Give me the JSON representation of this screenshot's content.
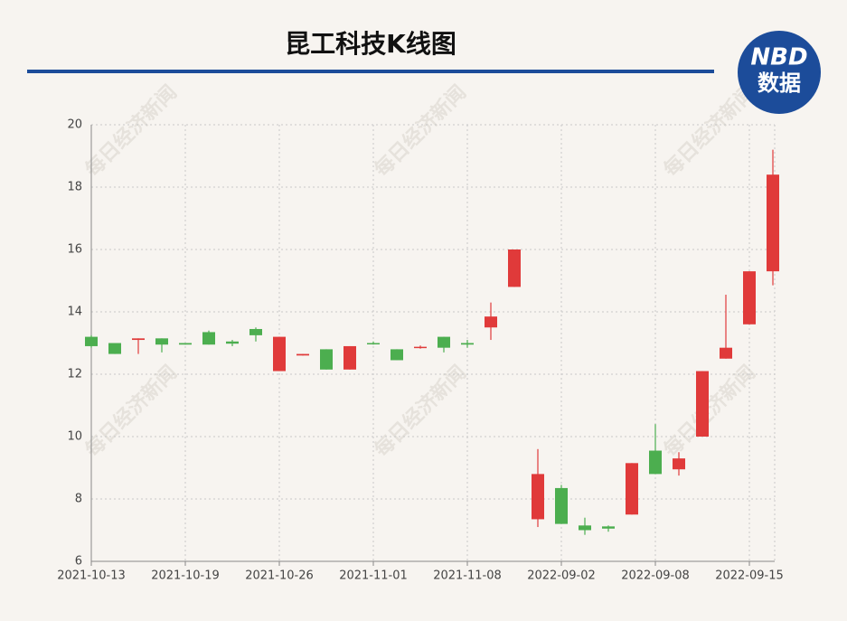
{
  "chart_data": {
    "type": "candlestick",
    "title": "昆工科技K线图",
    "categories": [
      "2021-10-13",
      null,
      null,
      null,
      "2021-10-19",
      null,
      null,
      null,
      "2021-10-26",
      null,
      null,
      null,
      "2021-11-01",
      null,
      null,
      null,
      "2021-11-08",
      null,
      null,
      null,
      "2022-09-02",
      null,
      null,
      null,
      "2022-09-08",
      null,
      null,
      null,
      "2022-09-15",
      null
    ],
    "open": [
      13.2,
      13.0,
      13.1,
      13.15,
      13.0,
      13.35,
      13.05,
      13.45,
      12.1,
      12.6,
      12.8,
      12.15,
      13.0,
      12.8,
      12.85,
      13.2,
      13.0,
      13.5,
      14.8,
      7.35,
      8.35,
      7.15,
      7.12,
      7.5,
      9.55,
      8.95,
      10.0,
      12.5,
      13.6,
      15.3
    ],
    "close": [
      12.9,
      12.65,
      13.15,
      12.95,
      12.95,
      12.95,
      12.98,
      13.25,
      13.2,
      12.65,
      12.15,
      12.9,
      12.98,
      12.45,
      12.88,
      12.85,
      12.95,
      13.85,
      16.0,
      8.8,
      7.2,
      7.0,
      7.05,
      9.15,
      8.8,
      9.3,
      12.1,
      12.85,
      15.3,
      18.4
    ],
    "low": [
      12.85,
      12.65,
      12.65,
      12.7,
      12.95,
      12.95,
      12.9,
      13.05,
      12.1,
      12.6,
      12.15,
      12.15,
      12.95,
      12.45,
      12.82,
      12.7,
      12.85,
      13.1,
      14.8,
      7.1,
      7.2,
      6.85,
      6.95,
      7.5,
      8.8,
      8.75,
      10.0,
      12.5,
      13.6,
      14.85
    ],
    "high": [
      13.25,
      13.0,
      13.15,
      13.15,
      13.0,
      13.4,
      13.1,
      13.5,
      13.2,
      12.65,
      12.8,
      12.9,
      13.05,
      12.8,
      12.92,
      13.2,
      13.1,
      14.3,
      16.0,
      9.6,
      8.45,
      7.4,
      7.15,
      9.15,
      10.4,
      9.5,
      12.1,
      14.55,
      15.3,
      19.2
    ],
    "up_color": "#e03a3a",
    "down_color": "#4cae4f",
    "ylim": [
      6,
      20
    ],
    "yticks": [
      6,
      8,
      10,
      12,
      14,
      16,
      18,
      20
    ],
    "grid": true
  },
  "logo": {
    "line1": "NBD",
    "line2": "数据"
  },
  "watermark": "每日经济新闻"
}
